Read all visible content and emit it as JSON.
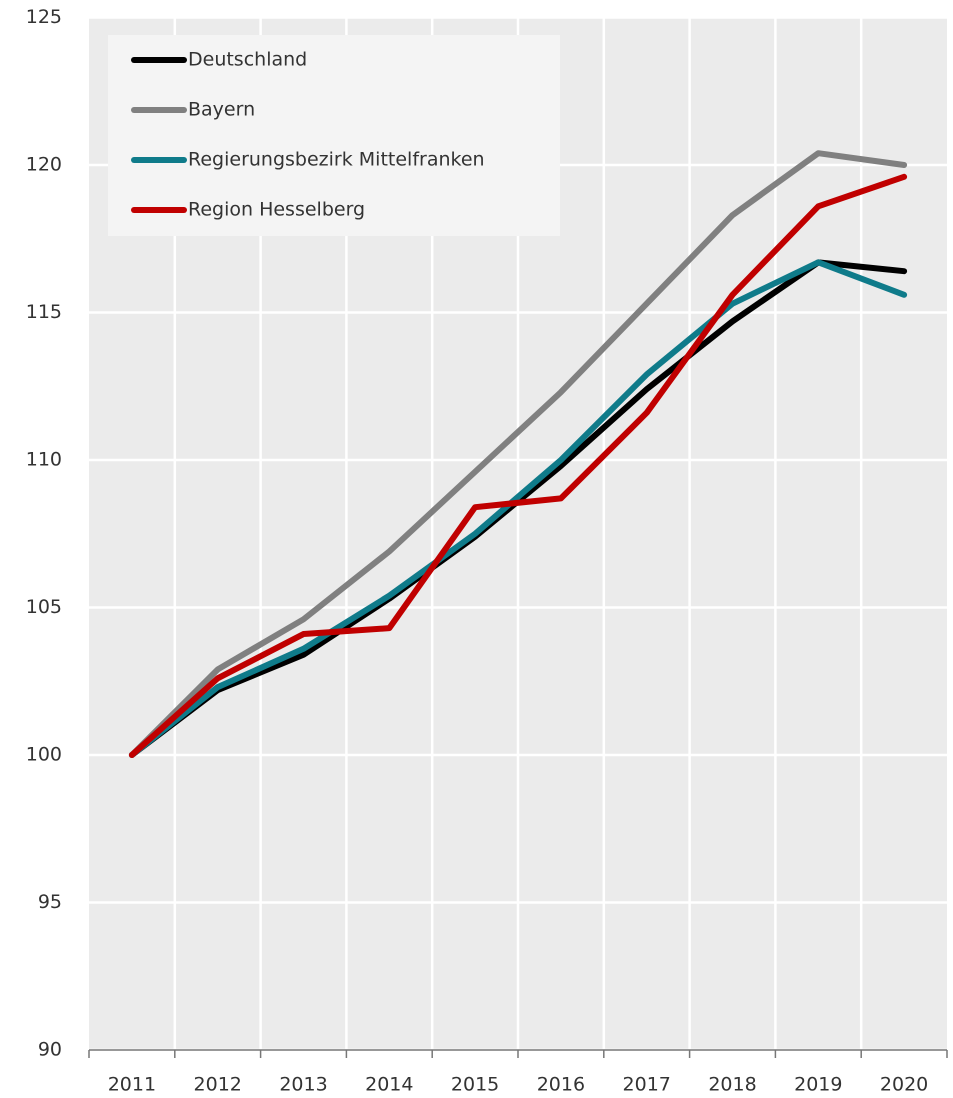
{
  "chart_data": {
    "type": "line",
    "categories": [
      "2011",
      "2012",
      "2013",
      "2014",
      "2015",
      "2016",
      "2017",
      "2018",
      "2019",
      "2020"
    ],
    "series": [
      {
        "name": "Deutschland",
        "color": "#000000",
        "values": [
          100,
          102.2,
          103.4,
          105.3,
          107.4,
          109.8,
          112.4,
          114.7,
          116.7,
          116.4
        ]
      },
      {
        "name": "Bayern",
        "color": "#808080",
        "values": [
          100,
          102.9,
          104.6,
          106.9,
          109.6,
          112.3,
          115.3,
          118.3,
          120.4,
          120.0
        ]
      },
      {
        "name": "Regierungsbezirk Mittelfranken",
        "color": "#0f7b8a",
        "values": [
          100,
          102.3,
          103.6,
          105.4,
          107.5,
          110.0,
          112.9,
          115.3,
          116.7,
          115.6
        ]
      },
      {
        "name": "Region Hesselberg",
        "color": "#c00000",
        "values": [
          100,
          102.6,
          104.1,
          104.3,
          108.4,
          108.7,
          111.6,
          115.6,
          118.6,
          119.6
        ]
      }
    ],
    "ylim": [
      90,
      125
    ],
    "yticks": [
      90,
      95,
      100,
      105,
      110,
      115,
      120,
      125
    ],
    "grid": true,
    "legend": "top-left"
  }
}
